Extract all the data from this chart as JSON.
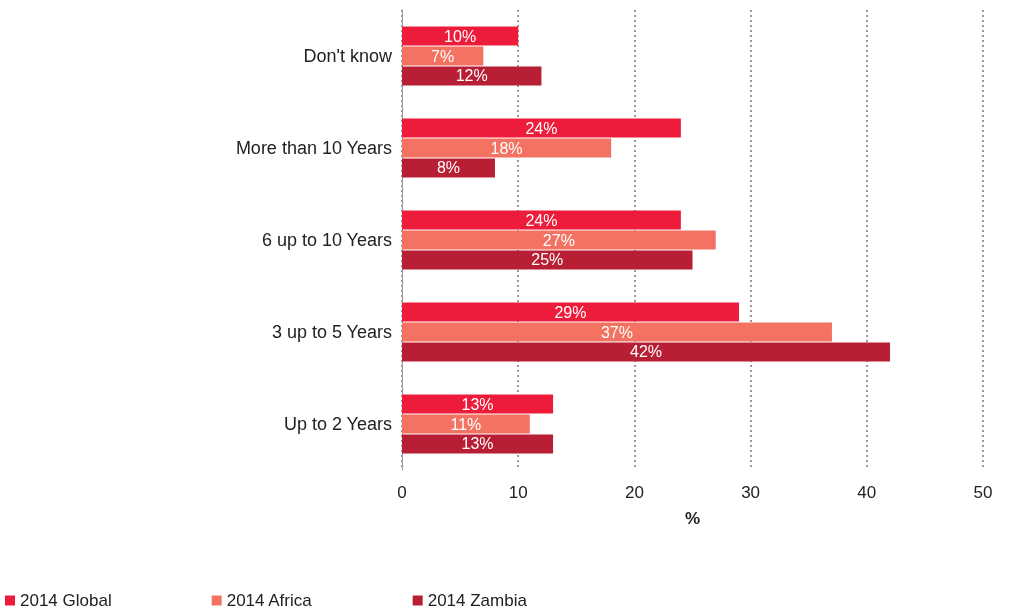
{
  "chart_data": {
    "type": "bar",
    "orientation": "horizontal",
    "xlabel": "%",
    "categories": [
      "Don't know",
      "More than 10 Years",
      "6 up to 10 Years",
      "3 up to 5 Years",
      "Up to 2 Years"
    ],
    "series": [
      {
        "name": "2014 Global",
        "color": "#ed1c3a",
        "values": [
          10,
          24,
          24,
          29,
          13
        ],
        "value_labels": [
          "10%",
          "24%",
          "24%",
          "29%",
          "13%"
        ]
      },
      {
        "name": "2014 Africa",
        "color": "#f37262",
        "values": [
          7,
          18,
          27,
          37,
          11
        ],
        "value_labels": [
          "7%",
          "18%",
          "27%",
          "37%",
          "11%"
        ]
      },
      {
        "name": "2014 Zambia",
        "color": "#b81f35",
        "values": [
          12,
          8,
          25,
          42,
          13
        ],
        "value_labels": [
          "12%",
          "8%",
          "25%",
          "42%",
          "13%"
        ]
      }
    ],
    "xlim": [
      0,
      50
    ],
    "xticks": [
      0,
      10,
      20,
      30,
      40,
      50
    ],
    "grid": "x",
    "legend": "bottom left"
  }
}
